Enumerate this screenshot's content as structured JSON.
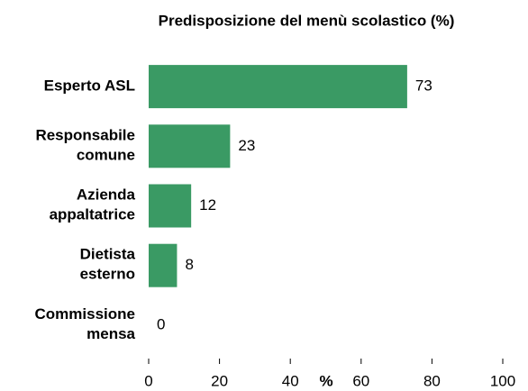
{
  "chart_data": {
    "type": "barh",
    "title": "Predisposizione del menù scolastico (%)",
    "categories": [
      "Esperto ASL",
      "Responsabile\ncomune",
      "Azienda\nappaltatrice",
      "Dietista\nesterno",
      "Commissione\nmensa"
    ],
    "values": [
      73,
      23,
      12,
      8,
      0
    ],
    "color": "#3a9a64",
    "xlabel": "%",
    "xlim": [
      0,
      100
    ],
    "xticks": [
      0,
      20,
      40,
      60,
      80,
      100
    ]
  }
}
